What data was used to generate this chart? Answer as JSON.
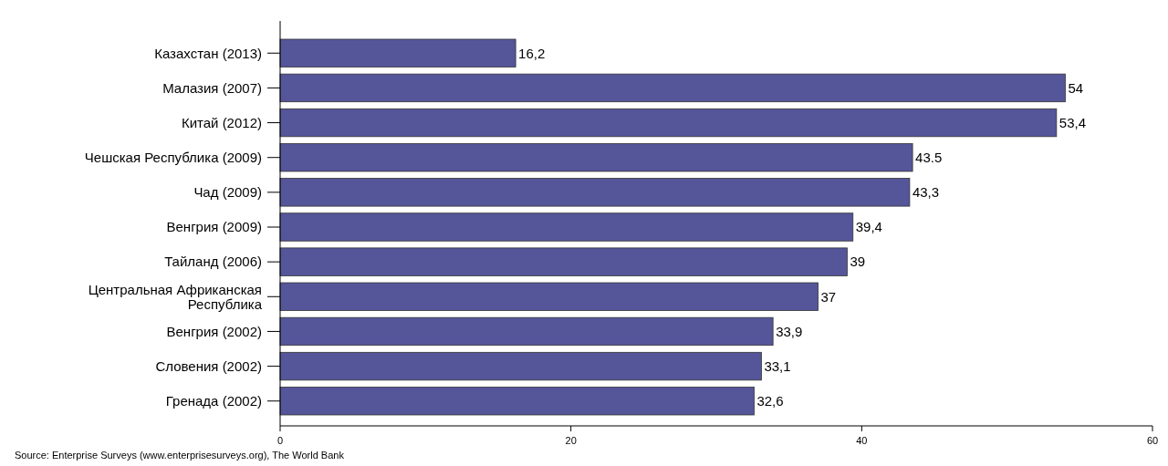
{
  "chart_data": {
    "type": "bar",
    "orientation": "horizontal",
    "categories": [
      "Казахстан (2013)",
      "Малазия (2007)",
      "Китай (2012)",
      "Чешская Республика (2009)",
      "Чад (2009)",
      "Венгрия (2009)",
      "Тайланд (2006)",
      "Центральная Африканская Республика",
      "Венгрия (2002)",
      "Словения (2002)",
      "Гренада (2002)"
    ],
    "values": [
      16.2,
      54,
      53.4,
      43.5,
      43.3,
      39.4,
      39,
      37,
      33.9,
      33.1,
      32.6
    ],
    "value_labels": [
      "16,2",
      "54",
      "53,4",
      "43.5",
      "43,3",
      "39,4",
      "39",
      "37",
      "33,9",
      "33,1",
      "32,6"
    ],
    "color": "#55559a",
    "xlim": [
      0,
      60
    ],
    "xticks": [
      0,
      20,
      40,
      60
    ],
    "grid": false,
    "annotations": [
      "Source: Enterprise Surveys (www.enterprisesurveys.org), The World Bank"
    ]
  }
}
